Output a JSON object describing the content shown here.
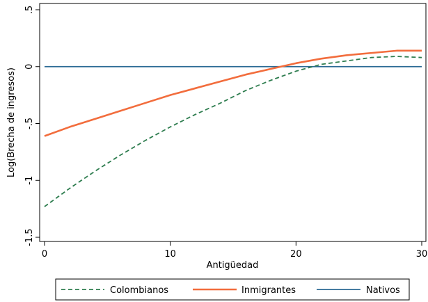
{
  "chart_data": {
    "type": "line",
    "xlabel": "Antigüedad",
    "ylabel": "Log(Brecha de ingresos)",
    "xlim": [
      0,
      30
    ],
    "ylim": [
      -1.5,
      0.5
    ],
    "x_ticks": [
      0,
      10,
      20,
      30
    ],
    "x_tick_labels": [
      "0",
      "10",
      "20",
      "30"
    ],
    "y_ticks": [
      -1.5,
      -1,
      -0.5,
      0,
      0.5
    ],
    "y_tick_labels": [
      "-1.5",
      "-1",
      "-.5",
      "0",
      ".5"
    ],
    "grid": false,
    "legend_position": "bottom",
    "x": [
      0,
      2,
      4,
      6,
      8,
      10,
      12,
      14,
      16,
      18,
      20,
      22,
      24,
      26,
      28,
      30
    ],
    "series": [
      {
        "name": "Colombianos",
        "color": "#2e7d4f",
        "dash": "dashed",
        "values": [
          -1.23,
          -1.07,
          -0.92,
          -0.78,
          -0.65,
          -0.53,
          -0.42,
          -0.32,
          -0.21,
          -0.12,
          -0.04,
          0.02,
          0.05,
          0.08,
          0.09,
          0.08
        ]
      },
      {
        "name": "Inmigrantes",
        "color": "#f26d3d",
        "dash": "solid",
        "values": [
          -0.61,
          -0.53,
          -0.46,
          -0.39,
          -0.32,
          -0.25,
          -0.19,
          -0.13,
          -0.07,
          -0.02,
          0.03,
          0.07,
          0.1,
          0.12,
          0.14,
          0.14
        ]
      },
      {
        "name": "Nativos",
        "color": "#2b6a94",
        "dash": "solid",
        "values": [
          0,
          0,
          0,
          0,
          0,
          0,
          0,
          0,
          0,
          0,
          0,
          0,
          0,
          0,
          0,
          0
        ]
      }
    ]
  }
}
